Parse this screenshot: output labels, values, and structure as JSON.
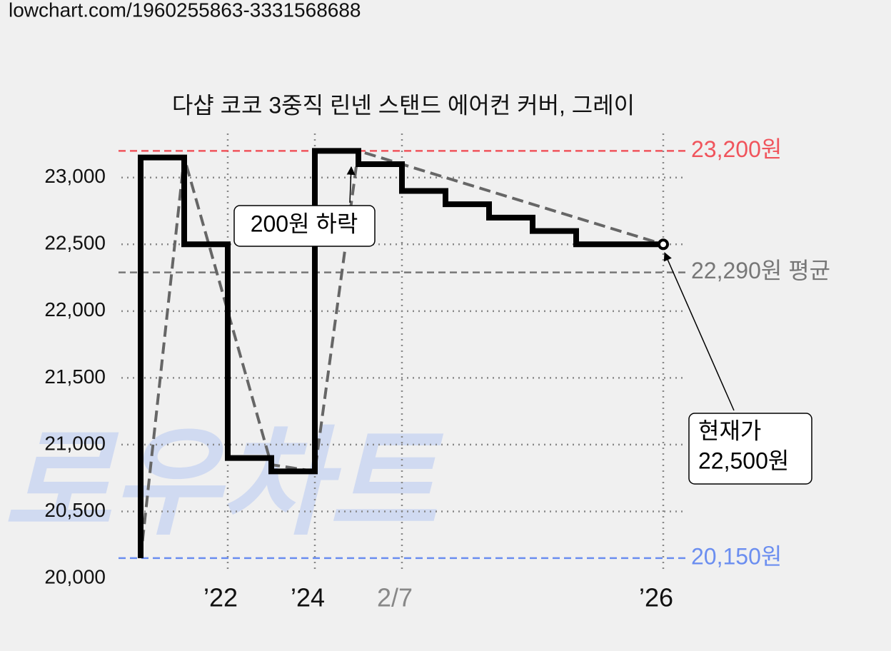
{
  "header": {
    "url": "lowchart.com/1960255863-3331568688"
  },
  "chart_data": {
    "type": "step",
    "title": "다샵 코코 3중직 린넨 스탠드 에어컨 커버, 그레이",
    "watermark": "로우차트",
    "xlim": [
      -0.5,
      12.5
    ],
    "xticks": [
      {
        "value": 2,
        "label": "’22"
      },
      {
        "value": 4,
        "label": "’24"
      },
      {
        "value": 6,
        "label": "2/7"
      },
      {
        "value": 12,
        "label": "’26"
      }
    ],
    "ylim": [
      20000,
      23330
    ],
    "yticks": [
      {
        "value": 20000,
        "label": "20,000"
      },
      {
        "value": 20500,
        "label": "20,500"
      },
      {
        "value": 21000,
        "label": "21,000"
      },
      {
        "value": 21500,
        "label": "21,500"
      },
      {
        "value": 22000,
        "label": "22,000"
      },
      {
        "value": 22500,
        "label": "22,500"
      },
      {
        "value": 23000,
        "label": "23,000"
      }
    ],
    "grid": true,
    "series": [
      {
        "color": "#000000",
        "x": [
          0,
          0,
          1,
          2,
          3,
          4,
          5,
          6,
          7,
          8,
          9,
          10,
          12
        ],
        "values": [
          20150,
          23150,
          22500,
          20900,
          20800,
          23200,
          23100,
          22900,
          22800,
          22700,
          22600,
          22500,
          22500
        ]
      },
      {
        "color": "#666666",
        "dashed": true,
        "x": [
          0,
          1,
          3,
          4,
          5,
          12
        ],
        "values": [
          20150,
          23150,
          20850,
          20800,
          23200,
          22500
        ]
      }
    ],
    "reference_lines": [
      {
        "value": 23200,
        "label": "23,200원",
        "color": "#f0545c"
      },
      {
        "value": 22290,
        "label": "22,290원 평균",
        "color": "#777777"
      },
      {
        "value": 20150,
        "label": "20,150원",
        "color": "#6b8ef0"
      }
    ],
    "annotations": [
      {
        "text": "200원 하락"
      },
      {
        "lines": [
          "현재가",
          "22,500원"
        ]
      }
    ]
  }
}
